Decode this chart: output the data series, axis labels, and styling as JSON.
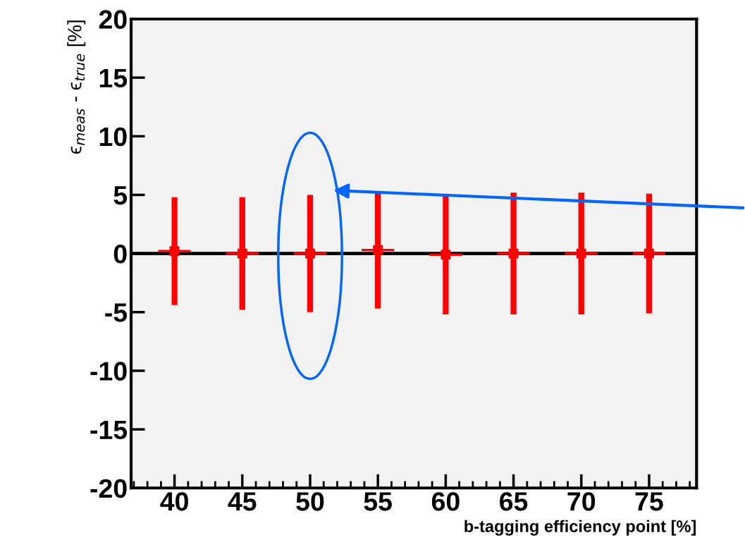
{
  "chart_data": {
    "type": "scatter",
    "xlabel": "b-tagging efficiency point [%]",
    "ylabel": "ϵ$_{meas}$ - ϵ$_{true}$ [%]",
    "x": [
      40,
      45,
      50,
      55,
      60,
      65,
      70,
      75
    ],
    "series": [
      {
        "color": "#ff0000",
        "values": [
          0.2,
          0,
          0,
          0.3,
          -0.1,
          0,
          0,
          0
        ],
        "errors": [
          4.6,
          4.8,
          5.0,
          5.0,
          5.1,
          5.2,
          5.2,
          5.1
        ],
        "xerrors": [
          1.2,
          1.2,
          1.2,
          1.2,
          1.2,
          1.2,
          1.2,
          1.2
        ]
      }
    ],
    "marker": "square",
    "xlim": [
      36.8,
      78.5
    ],
    "xticks": [
      40,
      45,
      50,
      55,
      60,
      65,
      70,
      75
    ],
    "ylim": [
      -20,
      20
    ],
    "yticks": [
      -20,
      -15,
      -10,
      -5,
      0,
      5,
      10,
      15,
      20
    ],
    "ref_lines": [
      {
        "axis": "y",
        "value": 0,
        "color": "#000000"
      }
    ],
    "grid": false,
    "legend": false
  }
}
